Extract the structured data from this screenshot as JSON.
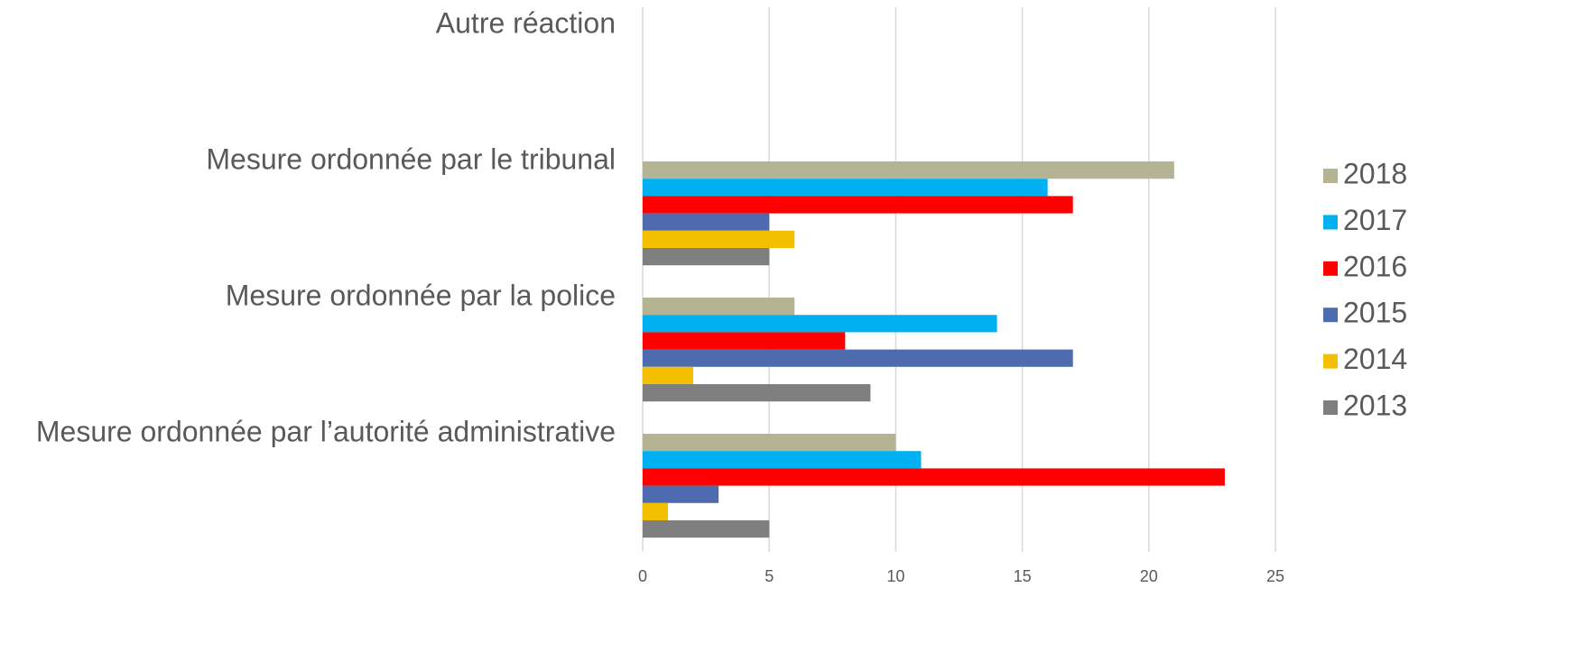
{
  "chart_data": {
    "type": "barh",
    "categories": [
      "Autre réaction",
      "Mesure ordonnée par le tribunal",
      "Mesure ordonnée par la police",
      "Mesure ordonnée par l’autorité administrative"
    ],
    "series": [
      {
        "name": "2018",
        "color": "#b4b494",
        "values": [
          0,
          21,
          6,
          10
        ]
      },
      {
        "name": "2017",
        "color": "#00b0f0",
        "values": [
          0,
          16,
          14,
          11
        ]
      },
      {
        "name": "2016",
        "color": "#ff0000",
        "values": [
          0,
          17,
          8,
          23
        ]
      },
      {
        "name": "2015",
        "color": "#4f6bb0",
        "values": [
          0,
          5,
          17,
          3
        ]
      },
      {
        "name": "2014",
        "color": "#f2c000",
        "values": [
          0,
          6,
          2,
          1
        ]
      },
      {
        "name": "2013",
        "color": "#7f7f7f",
        "values": [
          0,
          5,
          9,
          5
        ]
      }
    ],
    "xlim": [
      0,
      25
    ],
    "xticks": [
      0,
      5,
      10,
      15,
      20,
      25
    ],
    "grid": true,
    "legend": "right"
  }
}
